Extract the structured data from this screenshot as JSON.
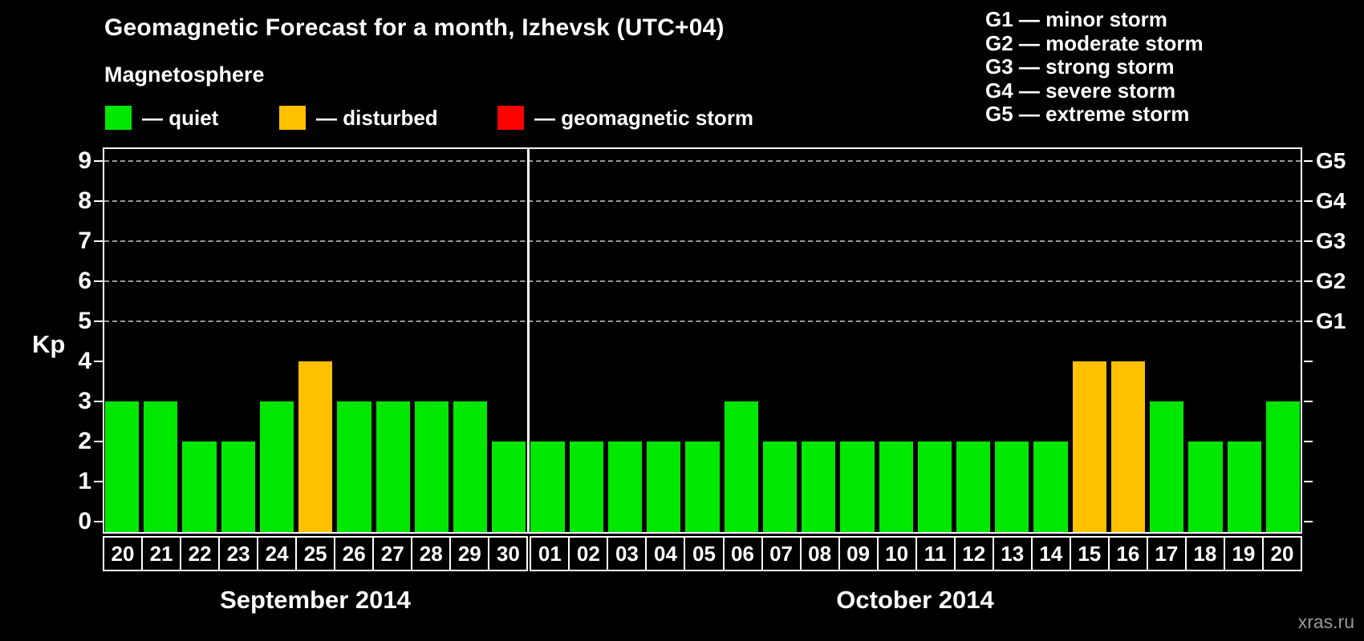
{
  "title": "Geomagnetic Forecast for a month, Izhevsk (UTC+04)",
  "legend": {
    "heading": "Magnetosphere",
    "items": [
      {
        "name": "quiet",
        "label": "— quiet",
        "color": "#00e800"
      },
      {
        "name": "disturbed",
        "label": "— disturbed",
        "color": "#ffc000"
      },
      {
        "name": "geomagnetic-storm",
        "label": "— geomagnetic storm",
        "color": "#ff0000"
      }
    ]
  },
  "g_scale": [
    {
      "label": "G1 — minor storm"
    },
    {
      "label": "G2 — moderate storm"
    },
    {
      "label": "G3 — strong storm"
    },
    {
      "label": "G4 — severe storm"
    },
    {
      "label": "G5 — extreme storm"
    }
  ],
  "watermark": "xras.ru",
  "colors": {
    "background": "#000000",
    "quiet": "#00e800",
    "disturbed": "#ffc000",
    "storm": "#ff0000",
    "gridline": "#999999",
    "axis": "#ffffff"
  },
  "chart_data": {
    "type": "bar",
    "title": "Geomagnetic Forecast for a month, Izhevsk (UTC+04)",
    "xlabel": "",
    "ylabel": "Kp",
    "ylim": [
      0,
      9
    ],
    "y_ticks": [
      0,
      1,
      2,
      3,
      4,
      5,
      6,
      7,
      8,
      9
    ],
    "grid_levels": [
      5,
      6,
      7,
      8,
      9
    ],
    "grid": "dashed horizontal at G-storm levels only",
    "legend_position": "top-left",
    "right_axis_labels": [
      {
        "kp": 5,
        "label": "G1"
      },
      {
        "kp": 6,
        "label": "G2"
      },
      {
        "kp": 7,
        "label": "G3"
      },
      {
        "kp": 8,
        "label": "G4"
      },
      {
        "kp": 9,
        "label": "G5"
      }
    ],
    "months": [
      {
        "label": "September 2014",
        "days": 11
      },
      {
        "label": "October 2014",
        "days": 20
      }
    ],
    "categories": [
      "20",
      "21",
      "22",
      "23",
      "24",
      "25",
      "26",
      "27",
      "28",
      "29",
      "30",
      "01",
      "02",
      "03",
      "04",
      "05",
      "06",
      "07",
      "08",
      "09",
      "10",
      "11",
      "12",
      "13",
      "14",
      "15",
      "16",
      "17",
      "18",
      "19",
      "20"
    ],
    "values": [
      3,
      3,
      2,
      2,
      3,
      4,
      3,
      3,
      3,
      3,
      2,
      2,
      2,
      2,
      2,
      2,
      3,
      2,
      2,
      2,
      2,
      2,
      2,
      2,
      2,
      4,
      4,
      3,
      2,
      2,
      3
    ],
    "statuses": [
      "quiet",
      "quiet",
      "quiet",
      "quiet",
      "quiet",
      "disturbed",
      "quiet",
      "quiet",
      "quiet",
      "quiet",
      "quiet",
      "quiet",
      "quiet",
      "quiet",
      "quiet",
      "quiet",
      "quiet",
      "quiet",
      "quiet",
      "quiet",
      "quiet",
      "quiet",
      "quiet",
      "quiet",
      "quiet",
      "disturbed",
      "disturbed",
      "quiet",
      "quiet",
      "quiet",
      "quiet"
    ]
  }
}
